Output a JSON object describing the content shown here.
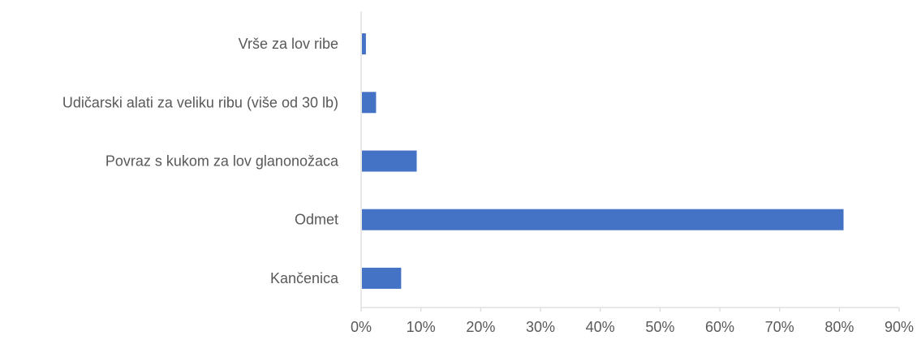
{
  "chart_data": {
    "type": "bar",
    "orientation": "horizontal",
    "categories": [
      "Vrše za lov ribe",
      "Udičarski alati za veliku ribu (više od 30 lb)",
      "Povraz s kukom za lov glanonožaca",
      "Odmet",
      "Kančenica"
    ],
    "values": [
      0.8,
      2.5,
      9.3,
      80.7,
      6.7
    ],
    "unit": "%",
    "xlim": [
      0,
      90
    ],
    "xticks": [
      0,
      10,
      20,
      30,
      40,
      50,
      60,
      70,
      80,
      90
    ],
    "xtick_labels": [
      "0%",
      "10%",
      "20%",
      "30%",
      "40%",
      "50%",
      "60%",
      "70%",
      "80%",
      "90%"
    ],
    "title": "",
    "xlabel": "",
    "ylabel": "",
    "legend": "none",
    "grid": false,
    "bar_color": "#4472C4",
    "axis_color": "#D9D9D9",
    "label_color": "#595959"
  }
}
